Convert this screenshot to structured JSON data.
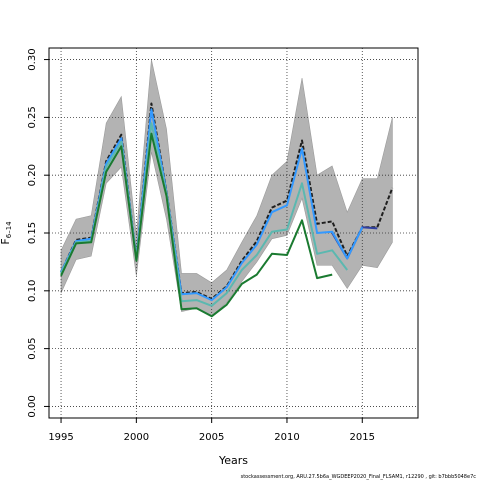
{
  "chart_data": {
    "type": "line",
    "xlabel": "Years",
    "ylabel_main": "F",
    "ylabel_sub": "6–14",
    "xlim": [
      1994.2,
      2018.7
    ],
    "ylim": [
      -0.01,
      0.31
    ],
    "x_ticks": [
      1995,
      2000,
      2005,
      2010,
      2015
    ],
    "y_ticks": [
      0.0,
      0.05,
      0.1,
      0.15,
      0.2,
      0.25,
      0.3
    ],
    "y_tick_labels": [
      "0.00",
      "0.05",
      "0.10",
      "0.15",
      "0.20",
      "0.25",
      "0.30"
    ],
    "grid": true,
    "confidence_band": {
      "x": [
        1995,
        1996,
        1997,
        1998,
        1999,
        2000,
        2001,
        2002,
        2003,
        2004,
        2005,
        2006,
        2007,
        2008,
        2009,
        2010,
        2011,
        2012,
        2013,
        2014,
        2015,
        2016,
        2017
      ],
      "upper": [
        0.135,
        0.162,
        0.165,
        0.245,
        0.268,
        0.148,
        0.3,
        0.24,
        0.115,
        0.115,
        0.107,
        0.118,
        0.142,
        0.165,
        0.2,
        0.212,
        0.284,
        0.2,
        0.208,
        0.168,
        0.197,
        0.197,
        0.25
      ],
      "lower": [
        0.098,
        0.127,
        0.13,
        0.193,
        0.207,
        0.113,
        0.22,
        0.162,
        0.082,
        0.085,
        0.078,
        0.09,
        0.108,
        0.125,
        0.145,
        0.148,
        0.18,
        0.122,
        0.122,
        0.102,
        0.122,
        0.12,
        0.142
      ]
    },
    "series": [
      {
        "color": "#1f1f1f",
        "dashed": true,
        "x": [
          1995,
          1996,
          1997,
          1998,
          1999,
          2000,
          2001,
          2002,
          2003,
          2004,
          2005,
          2006,
          2007,
          2008,
          2009,
          2010,
          2011,
          2012,
          2013,
          2014,
          2015,
          2016,
          2017
        ],
        "values": [
          0.116,
          0.144,
          0.146,
          0.212,
          0.235,
          0.128,
          0.262,
          0.186,
          0.098,
          0.099,
          0.093,
          0.104,
          0.126,
          0.143,
          0.172,
          0.178,
          0.23,
          0.158,
          0.16,
          0.13,
          0.155,
          0.155,
          0.189
        ]
      },
      {
        "color": "#2f3f9f",
        "x": [
          2013,
          2014,
          2015,
          2016
        ],
        "values": [
          0.15,
          0.128,
          0.155,
          0.154
        ]
      },
      {
        "color": "#3399ff",
        "x": [
          1995,
          1996,
          1997,
          1998,
          1999,
          2000,
          2001,
          2002,
          2003,
          2004,
          2005,
          2006,
          2007,
          2008,
          2009,
          2010,
          2011,
          2012,
          2013,
          2014,
          2015
        ],
        "values": [
          0.116,
          0.143,
          0.145,
          0.21,
          0.232,
          0.128,
          0.257,
          0.185,
          0.097,
          0.098,
          0.092,
          0.103,
          0.124,
          0.14,
          0.168,
          0.174,
          0.223,
          0.15,
          0.151,
          0.128,
          0.155
        ]
      },
      {
        "color": "#5bb8b0",
        "x": [
          1995,
          1996,
          1997,
          1998,
          1999,
          2000,
          2001,
          2002,
          2003,
          2004,
          2005,
          2006,
          2007,
          2008,
          2009,
          2010,
          2011,
          2012,
          2013,
          2014
        ],
        "values": [
          0.115,
          0.142,
          0.143,
          0.207,
          0.229,
          0.127,
          0.245,
          0.184,
          0.091,
          0.092,
          0.087,
          0.098,
          0.118,
          0.131,
          0.151,
          0.153,
          0.193,
          0.132,
          0.135,
          0.118
        ]
      },
      {
        "color": "#1a7a30",
        "x": [
          1995,
          1996,
          1997,
          1998,
          1999,
          2000,
          2001,
          2002,
          2003,
          2004,
          2005,
          2006,
          2007,
          2008,
          2009,
          2010,
          2011,
          2012,
          2013
        ],
        "values": [
          0.113,
          0.141,
          0.142,
          0.203,
          0.225,
          0.126,
          0.236,
          0.182,
          0.084,
          0.085,
          0.078,
          0.088,
          0.106,
          0.114,
          0.132,
          0.131,
          0.161,
          0.111,
          0.114
        ]
      }
    ],
    "credit": "stockassessment.org,  ARU.27.5b6a_WGDEEP2020_Final_FLSAM1,  r12290  ,  git: b7bbb5048e7c"
  }
}
